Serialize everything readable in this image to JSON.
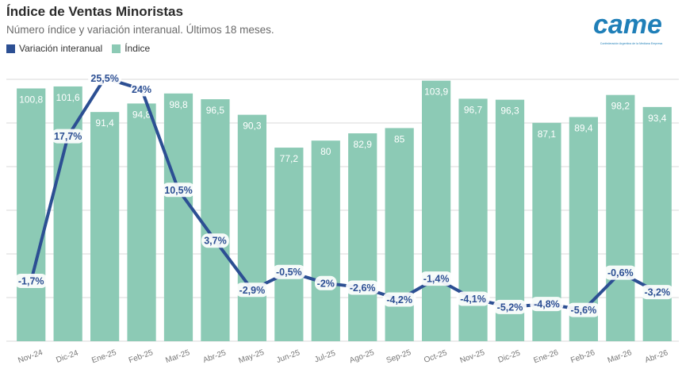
{
  "title": "Índice de Ventas Minoristas",
  "subtitle": "Número índice y variación interanual. Últimos 18 meses.",
  "logo": {
    "text": "came",
    "tagline": "Confederación Argentina de la Mediana Empresa",
    "color": "#1f7fb8"
  },
  "colors": {
    "bar": "#8ccab5",
    "line": "#2c4f93",
    "grid": "#dadada"
  },
  "chart_data": {
    "type": "bar",
    "categories": [
      "Nov-24",
      "Dic-24",
      "Ene-25",
      "Feb-25",
      "Mar-25",
      "Abr-25",
      "May-25",
      "Jun-25",
      "Jul-25",
      "Ago-25",
      "Sep-25",
      "Oct-25",
      "Nov-25",
      "Dic-25",
      "Ene-26",
      "Feb-26",
      "Mar-26",
      "Abr-26"
    ],
    "series": [
      {
        "name": "Índice",
        "type": "bar",
        "values": [
          100.8,
          101.6,
          91.4,
          94.8,
          98.8,
          96.5,
          90.3,
          77.2,
          80,
          82.9,
          85,
          103.9,
          96.7,
          96.3,
          87.1,
          89.4,
          98.2,
          93.4
        ],
        "labels": [
          "100,8",
          "101,6",
          "91,4",
          "94,8",
          "98,8",
          "96,5",
          "90,3",
          "77,2",
          "80",
          "82,9",
          "85",
          "103,9",
          "96,7",
          "96,3",
          "87,1",
          "89,4",
          "98,2",
          "93,4"
        ]
      },
      {
        "name": "Variación interanual",
        "type": "line",
        "values": [
          -1.7,
          17.7,
          25.5,
          24,
          10.5,
          3.7,
          -2.9,
          -0.5,
          -2,
          -2.6,
          -4.2,
          -1.4,
          -4.1,
          -5.2,
          -4.8,
          -5.6,
          -0.6,
          -3.2
        ],
        "labels": [
          "-1,7%",
          "17,7%",
          "25,5%",
          "24%",
          "10,5%",
          "3,7%",
          "-2,9%",
          "-0,5%",
          "-2%",
          "-2,6%",
          "-4,2%",
          "-1,4%",
          "-4,1%",
          "-5,2%",
          "-4,8%",
          "-5,6%",
          "-0,6%",
          "-3,2%"
        ]
      }
    ],
    "bar_ylim": [
      0,
      110
    ],
    "line_ylim": [
      -15,
      30
    ],
    "legend_position": "top-left",
    "grid": true
  }
}
